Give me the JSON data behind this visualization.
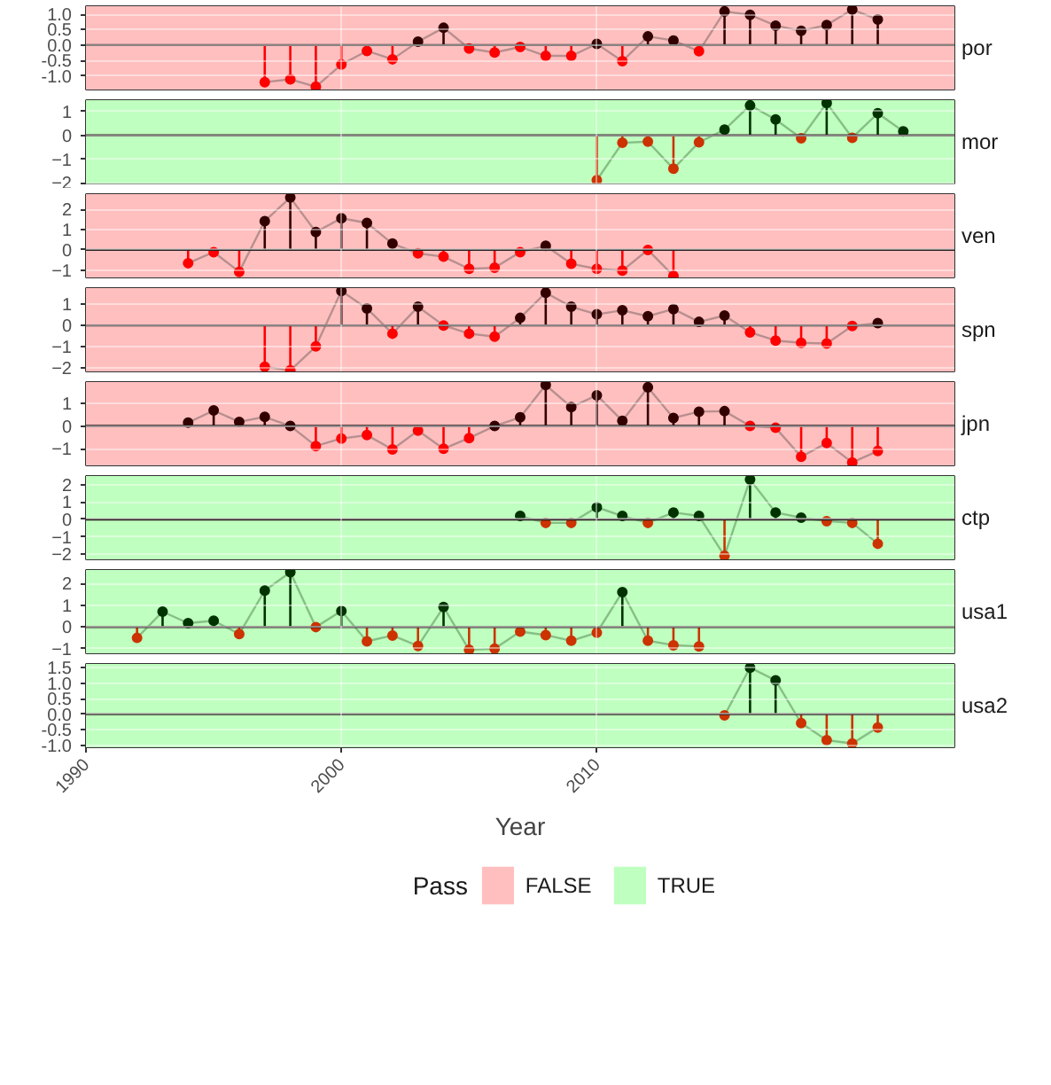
{
  "chart_data": [
    {
      "type": "lollipop",
      "title": "por",
      "x": [
        1997,
        1998,
        1999,
        2000,
        2001,
        2002,
        2003,
        2004,
        2005,
        2006,
        2007,
        2008,
        2009,
        2010,
        2011,
        2012,
        2013,
        2014,
        2015,
        2016,
        2017,
        2018,
        2019,
        2020,
        2021
      ],
      "xlim": [
        1990,
        2024
      ],
      "xticks": [
        1990,
        2000,
        2010
      ],
      "ylim": [
        -1.44,
        1.26
      ],
      "yticks": [
        {
          "value": -1,
          "label": "-1.0"
        },
        {
          "value": -0.5,
          "label": "-0.5"
        },
        {
          "value": 0,
          "label": "0.0"
        },
        {
          "value": 0.5,
          "label": "0.5"
        },
        {
          "value": 1,
          "label": "1.0"
        }
      ],
      "grid": true,
      "tick_labels": "y",
      "bands": [
        {
          "axis": "x",
          "from": 1990,
          "to": 2024,
          "color": "#ffbfbf"
        }
      ],
      "ref_lines": [
        {
          "axis": "y",
          "value": 0
        }
      ],
      "series": [
        {
          "type": "line",
          "color": "#b08a8a",
          "values": [
            -1.2,
            -1.11,
            -1.35,
            -0.63,
            -0.19,
            -0.46,
            0.11,
            0.56,
            -0.11,
            -0.24,
            -0.06,
            -0.35,
            -0.35,
            0.04,
            -0.52,
            0.28,
            0.15,
            -0.2,
            1.09,
            0.98,
            0.63,
            0.46,
            0.65,
            1.15,
            0.83
          ]
        },
        {
          "colors": [
            "#ff0000",
            "#ff0000",
            "#ff0000",
            "#ff0000",
            "#ff0000",
            "#ff0000",
            "#330000",
            "#330000",
            "#ff0000",
            "#ff0000",
            "#ff0000",
            "#ff0000",
            "#ff0000",
            "#330000",
            "#ff0000",
            "#330000",
            "#330000",
            "#ff0000",
            "#330000",
            "#330000",
            "#330000",
            "#330000",
            "#330000",
            "#330000",
            "#330000"
          ],
          "values": [
            -1.2,
            -1.11,
            -1.35,
            -0.63,
            -0.19,
            -0.46,
            0.11,
            0.56,
            -0.11,
            -0.24,
            -0.06,
            -0.35,
            -0.35,
            0.04,
            -0.52,
            0.28,
            0.15,
            -0.2,
            1.09,
            0.98,
            0.63,
            0.46,
            0.65,
            1.15,
            0.83
          ]
        }
      ]
    },
    {
      "type": "lollipop",
      "title": "mor",
      "x": [
        2010,
        2011,
        2012,
        2013,
        2014,
        2015,
        2016,
        2017,
        2018,
        2019,
        2020,
        2021,
        2022
      ],
      "xlim": [
        1990,
        2024
      ],
      "xticks": [
        1990,
        2000,
        2010
      ],
      "ylim": [
        -2.02,
        1.48
      ],
      "yticks": [
        -2,
        -1,
        0,
        1
      ],
      "grid": true,
      "tick_labels": "y",
      "bands": [
        {
          "axis": "x",
          "from": 1990,
          "to": 2024,
          "color": "#bfffbf"
        }
      ],
      "ref_lines": [
        {
          "axis": "y",
          "value": 0
        }
      ],
      "series": [
        {
          "type": "line",
          "color": "#7fb87f",
          "values": [
            -1.88,
            -0.31,
            -0.26,
            -1.4,
            -0.29,
            0.24,
            1.26,
            0.67,
            -0.12,
            1.36,
            -0.1,
            0.93,
            0.17
          ]
        },
        {
          "colors": [
            "#cc3300",
            "#cc3300",
            "#cc3300",
            "#cc3300",
            "#cc3300",
            "#003300",
            "#003300",
            "#003300",
            "#cc3300",
            "#003300",
            "#cc3300",
            "#003300",
            "#003300"
          ],
          "values": [
            -1.88,
            -0.31,
            -0.26,
            -1.4,
            -0.29,
            0.24,
            1.26,
            0.67,
            -0.12,
            1.36,
            -0.1,
            0.93,
            0.17
          ]
        }
      ]
    },
    {
      "type": "lollipop",
      "title": "ven",
      "x": [
        1994,
        1995,
        1996,
        1997,
        1998,
        1999,
        2000,
        2001,
        2002,
        2003,
        2004,
        2005,
        2006,
        2007,
        2008,
        2009,
        2010,
        2011,
        2012,
        2013
      ],
      "xlim": [
        1990,
        2024
      ],
      "xticks": [
        1990,
        2000,
        2010
      ],
      "ylim": [
        -1.37,
        2.77
      ],
      "yticks": [
        -1,
        0,
        1,
        2
      ],
      "grid": true,
      "tick_labels": "y",
      "bands": [
        {
          "axis": "x",
          "from": 1990,
          "to": 2024,
          "color": "#ffbfbf"
        }
      ],
      "ref_lines": [
        {
          "axis": "y",
          "value": 0
        }
      ],
      "series": [
        {
          "type": "line",
          "color": "#b08a8a",
          "values": [
            -0.66,
            -0.11,
            -1.09,
            1.43,
            2.6,
            0.89,
            1.57,
            1.34,
            0.31,
            -0.17,
            -0.34,
            -0.94,
            -0.89,
            -0.11,
            0.2,
            -0.69,
            -0.94,
            -1.03,
            0.0,
            -1.29
          ]
        },
        {
          "colors": [
            "#ff0000",
            "#ff0000",
            "#ff0000",
            "#330000",
            "#330000",
            "#330000",
            "#330000",
            "#330000",
            "#330000",
            "#ff0000",
            "#ff0000",
            "#ff0000",
            "#ff0000",
            "#ff0000",
            "#330000",
            "#ff0000",
            "#ff0000",
            "#ff0000",
            "#ff0000",
            "#ff0000"
          ],
          "values": [
            -0.66,
            -0.11,
            -1.09,
            1.43,
            2.6,
            0.89,
            1.57,
            1.34,
            0.31,
            -0.17,
            -0.34,
            -0.94,
            -0.89,
            -0.11,
            0.2,
            -0.69,
            -0.94,
            -1.03,
            0.0,
            -1.29
          ]
        }
      ]
    },
    {
      "type": "lollipop",
      "title": "spn",
      "x": [
        1997,
        1998,
        1999,
        2000,
        2001,
        2002,
        2003,
        2004,
        2005,
        2006,
        2007,
        2008,
        2009,
        2010,
        2011,
        2012,
        2013,
        2014,
        2015,
        2016,
        2017,
        2018,
        2019,
        2020,
        2021
      ],
      "xlim": [
        1990,
        2024
      ],
      "xticks": [
        1990,
        2000,
        2010
      ],
      "ylim": [
        -2.19,
        1.78
      ],
      "yticks": [
        -2,
        -1,
        0,
        1
      ],
      "grid": true,
      "tick_labels": "y",
      "bands": [
        {
          "axis": "x",
          "from": 1990,
          "to": 2024,
          "color": "#ffbfbf"
        }
      ],
      "ref_lines": [
        {
          "axis": "y",
          "value": 0
        }
      ],
      "series": [
        {
          "type": "line",
          "color": "#b08a8a",
          "values": [
            -1.97,
            -2.14,
            -1.0,
            1.64,
            0.81,
            -0.39,
            0.89,
            0.0,
            -0.39,
            -0.53,
            0.36,
            1.56,
            0.89,
            0.53,
            0.72,
            0.44,
            0.78,
            0.17,
            0.47,
            -0.33,
            -0.72,
            -0.83,
            -0.86,
            -0.03,
            0.11
          ]
        },
        {
          "colors": [
            "#ff0000",
            "#ff0000",
            "#ff0000",
            "#330000",
            "#330000",
            "#ff0000",
            "#330000",
            "#ff0000",
            "#ff0000",
            "#ff0000",
            "#330000",
            "#330000",
            "#330000",
            "#330000",
            "#330000",
            "#330000",
            "#330000",
            "#330000",
            "#330000",
            "#ff0000",
            "#ff0000",
            "#ff0000",
            "#ff0000",
            "#ff0000",
            "#330000"
          ],
          "values": [
            -1.97,
            -2.14,
            -1.0,
            1.64,
            0.81,
            -0.39,
            0.89,
            0.0,
            -0.39,
            -0.53,
            0.36,
            1.56,
            0.89,
            0.53,
            0.72,
            0.44,
            0.78,
            0.17,
            0.47,
            -0.33,
            -0.72,
            -0.83,
            -0.86,
            -0.03,
            0.11
          ]
        }
      ]
    },
    {
      "type": "lollipop",
      "title": "jpn",
      "x": [
        1994,
        1995,
        1996,
        1997,
        1998,
        1999,
        2000,
        2001,
        2002,
        2003,
        2004,
        2005,
        2006,
        2007,
        2008,
        2009,
        2010,
        2011,
        2012,
        2013,
        2014,
        2015,
        2016,
        2017,
        2018,
        2019,
        2020,
        2021
      ],
      "xlim": [
        1990,
        2024
      ],
      "xticks": [
        1990,
        2000,
        2010
      ],
      "ylim": [
        -1.73,
        1.93
      ],
      "yticks": [
        -1,
        0,
        1
      ],
      "grid": true,
      "tick_labels": "y",
      "bands": [
        {
          "axis": "x",
          "from": 1990,
          "to": 2024,
          "color": "#ffbfbf"
        }
      ],
      "ref_lines": [
        {
          "axis": "y",
          "value": 0
        }
      ],
      "series": [
        {
          "type": "line",
          "color": "#b08a8a",
          "values": [
            0.15,
            0.68,
            0.18,
            0.4,
            0.0,
            -0.88,
            -0.55,
            -0.4,
            -1.03,
            -0.2,
            -1.0,
            -0.53,
            0.0,
            0.38,
            1.8,
            0.83,
            1.35,
            0.23,
            1.7,
            0.35,
            0.63,
            0.65,
            0.0,
            -0.08,
            -1.35,
            -0.75,
            -1.6,
            -1.1
          ]
        },
        {
          "colors": [
            "#330000",
            "#330000",
            "#330000",
            "#330000",
            "#330000",
            "#ff0000",
            "#ff0000",
            "#ff0000",
            "#ff0000",
            "#ff0000",
            "#ff0000",
            "#ff0000",
            "#330000",
            "#330000",
            "#330000",
            "#330000",
            "#330000",
            "#330000",
            "#330000",
            "#330000",
            "#330000",
            "#330000",
            "#ff0000",
            "#ff0000",
            "#ff0000",
            "#ff0000",
            "#ff0000",
            "#ff0000"
          ],
          "values": [
            0.15,
            0.68,
            0.18,
            0.4,
            0.0,
            -0.88,
            -0.55,
            -0.4,
            -1.03,
            -0.2,
            -1.0,
            -0.53,
            0.0,
            0.38,
            1.8,
            0.83,
            1.35,
            0.23,
            1.7,
            0.35,
            0.63,
            0.65,
            0.0,
            -0.08,
            -1.35,
            -0.75,
            -1.6,
            -1.1
          ]
        }
      ]
    },
    {
      "type": "lollipop",
      "title": "ctp",
      "x": [
        2007,
        2008,
        2009,
        2010,
        2011,
        2012,
        2013,
        2014,
        2015,
        2016,
        2017,
        2018,
        2019,
        2020,
        2021
      ],
      "xlim": [
        1990,
        2024
      ],
      "xticks": [
        1990,
        2000,
        2010
      ],
      "ylim": [
        -2.3,
        2.5
      ],
      "yticks": [
        -2,
        -1,
        0,
        1,
        2
      ],
      "grid": true,
      "tick_labels": "y",
      "bands": [
        {
          "axis": "x",
          "from": 1990,
          "to": 2024,
          "color": "#bfffbf"
        }
      ],
      "ref_lines": [
        {
          "axis": "y",
          "value": 0
        }
      ],
      "series": [
        {
          "type": "line",
          "color": "#7fb87f",
          "values": [
            0.2,
            -0.2,
            -0.2,
            0.7,
            0.2,
            -0.2,
            0.4,
            0.2,
            -2.1,
            2.3,
            0.4,
            0.1,
            -0.1,
            -0.2,
            -1.4
          ]
        },
        {
          "colors": [
            "#003300",
            "#cc3300",
            "#cc3300",
            "#003300",
            "#003300",
            "#cc3300",
            "#003300",
            "#003300",
            "#cc3300",
            "#003300",
            "#003300",
            "#003300",
            "#cc3300",
            "#cc3300",
            "#cc3300"
          ],
          "values": [
            0.2,
            -0.2,
            -0.2,
            0.7,
            0.2,
            -0.2,
            0.4,
            0.2,
            -2.1,
            2.3,
            0.4,
            0.1,
            -0.1,
            -0.2,
            -1.4
          ]
        }
      ]
    },
    {
      "type": "lollipop",
      "title": "usa1",
      "x": [
        1992,
        1993,
        1994,
        1995,
        1996,
        1997,
        1998,
        1999,
        2000,
        2001,
        2002,
        2003,
        2004,
        2005,
        2006,
        2007,
        2008,
        2009,
        2010,
        2011,
        2012,
        2013,
        2014
      ],
      "xlim": [
        1990,
        2024
      ],
      "xticks": [
        1990,
        2000,
        2010
      ],
      "ylim": [
        -1.21,
        2.63
      ],
      "yticks": [
        -1,
        0,
        1,
        2
      ],
      "grid": true,
      "tick_labels": "y",
      "bands": [
        {
          "axis": "x",
          "from": 1990,
          "to": 2024,
          "color": "#bfffbf"
        }
      ],
      "ref_lines": [
        {
          "axis": "y",
          "value": 0
        }
      ],
      "series": [
        {
          "type": "line",
          "color": "#7fb87f",
          "values": [
            -0.5,
            0.71,
            0.18,
            0.29,
            -0.32,
            1.68,
            2.53,
            0.0,
            0.74,
            -0.66,
            -0.39,
            -0.87,
            0.92,
            -1.05,
            -1.0,
            -0.21,
            -0.37,
            -0.63,
            -0.26,
            1.61,
            -0.63,
            -0.84,
            -0.89
          ]
        },
        {
          "colors": [
            "#cc3300",
            "#003300",
            "#003300",
            "#003300",
            "#cc3300",
            "#003300",
            "#003300",
            "#cc3300",
            "#003300",
            "#cc3300",
            "#cc3300",
            "#cc3300",
            "#003300",
            "#cc3300",
            "#cc3300",
            "#cc3300",
            "#cc3300",
            "#cc3300",
            "#cc3300",
            "#003300",
            "#cc3300",
            "#cc3300",
            "#cc3300"
          ],
          "values": [
            -0.5,
            0.71,
            0.18,
            0.29,
            -0.32,
            1.68,
            2.53,
            0.0,
            0.74,
            -0.66,
            -0.39,
            -0.87,
            0.92,
            -1.05,
            -1.0,
            -0.21,
            -0.37,
            -0.63,
            -0.26,
            1.61,
            -0.63,
            -0.84,
            -0.89
          ]
        }
      ]
    },
    {
      "type": "lollipop",
      "title": "usa2",
      "xlabel": "Year",
      "x": [
        2015,
        2016,
        2017,
        2018,
        2019,
        2020,
        2021
      ],
      "xlim": [
        1990,
        2024
      ],
      "xticks": [
        1990,
        2000,
        2010
      ],
      "ylim": [
        -1.07,
        1.62
      ],
      "yticks": [
        {
          "value": -1,
          "label": "-1.0"
        },
        {
          "value": -0.5,
          "label": "-0.5"
        },
        {
          "value": 0,
          "label": "0.0"
        },
        {
          "value": 0.5,
          "label": "0.5"
        },
        {
          "value": 1,
          "label": "1.0"
        },
        {
          "value": 1.5,
          "label": "1.5"
        }
      ],
      "grid": true,
      "bands": [
        {
          "axis": "x",
          "from": 1990,
          "to": 2024,
          "color": "#bfffbf"
        }
      ],
      "ref_lines": [
        {
          "axis": "y",
          "value": 0
        }
      ],
      "series": [
        {
          "type": "line",
          "color": "#7fb87f",
          "values": [
            -0.04,
            1.5,
            1.09,
            -0.29,
            -0.84,
            -0.95,
            -0.43
          ]
        },
        {
          "colors": [
            "#cc3300",
            "#003300",
            "#003300",
            "#cc3300",
            "#cc3300",
            "#cc3300",
            "#cc3300"
          ],
          "values": [
            -0.04,
            1.5,
            1.09,
            -0.29,
            -0.84,
            -0.95,
            -0.43
          ]
        }
      ]
    },
    {
      "type": "other",
      "legend_title": "Pass",
      "categories": [
        "FALSE",
        "TRUE"
      ],
      "colors": [
        "#ffbfbf",
        "#bfffbf"
      ]
    }
  ]
}
